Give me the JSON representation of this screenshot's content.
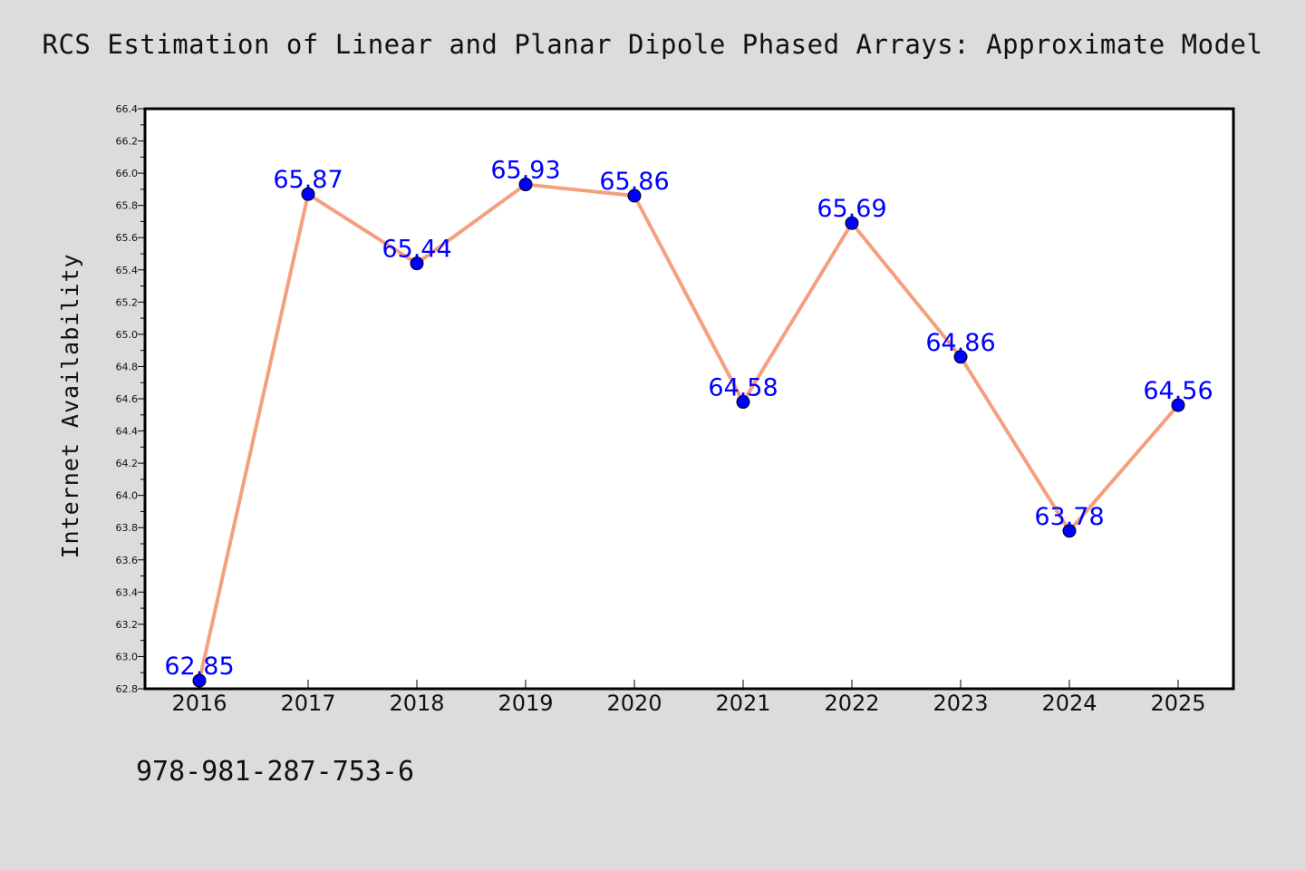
{
  "figure": {
    "background": "#dcdcdc",
    "footer_text": "978-981-287-753-6"
  },
  "chart_data": {
    "type": "line",
    "title": "RCS Estimation of Linear and Planar Dipole Phased Arrays: Approximate Model",
    "xlabel": "",
    "ylabel": "Internet Availability",
    "categories": [
      "2016",
      "2017",
      "2018",
      "2019",
      "2020",
      "2021",
      "2022",
      "2023",
      "2024",
      "2025"
    ],
    "series": [
      {
        "values": [
          62.85,
          65.87,
          65.44,
          65.93,
          65.86,
          64.58,
          65.69,
          64.86,
          63.78,
          64.56
        ],
        "line_color": "#f4a07e",
        "marker_color": "#0000ff"
      }
    ],
    "data_labels": [
      "62.85",
      "65.87",
      "65.44",
      "65.93",
      "65.86",
      "64.58",
      "65.69",
      "64.86",
      "63.78",
      "64.56"
    ],
    "data_label_color": "#0000ff",
    "ylim": [
      62.8,
      66.4
    ],
    "yticks": [
      "62.8",
      "63.0",
      "63.2",
      "63.4",
      "63.6",
      "63.8",
      "64.0",
      "64.2",
      "64.4",
      "64.6",
      "64.8",
      "65.0",
      "65.2",
      "65.4",
      "65.6",
      "65.8",
      "66.0",
      "66.2",
      "66.4"
    ],
    "grid": false,
    "legend": "none"
  }
}
